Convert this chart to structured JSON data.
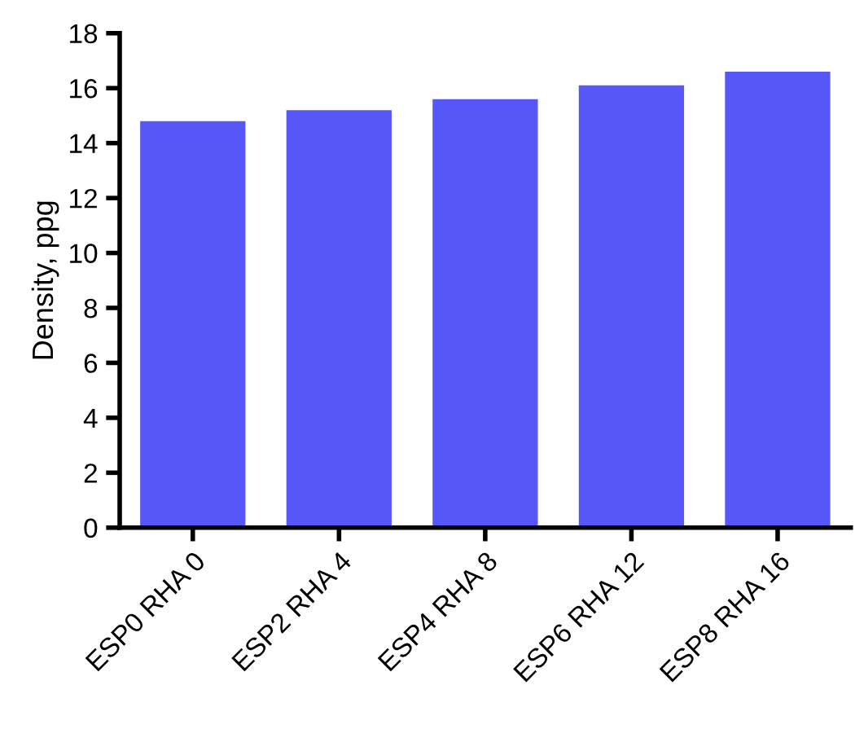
{
  "chart_data": {
    "type": "bar",
    "ylabel": "Density, ppg",
    "categories": [
      "ESP0 RHA 0",
      "ESP2 RHA 4",
      "ESP4 RHA 8",
      "ESP6 RHA 12",
      "ESP8 RHA 16"
    ],
    "values": [
      14.8,
      15.2,
      15.6,
      16.1,
      16.6
    ],
    "color": "#5757f7",
    "ylim": [
      0,
      18
    ],
    "yticks": [
      0,
      2,
      4,
      6,
      8,
      10,
      12,
      14,
      16,
      18
    ],
    "grid": false,
    "legend": false
  }
}
